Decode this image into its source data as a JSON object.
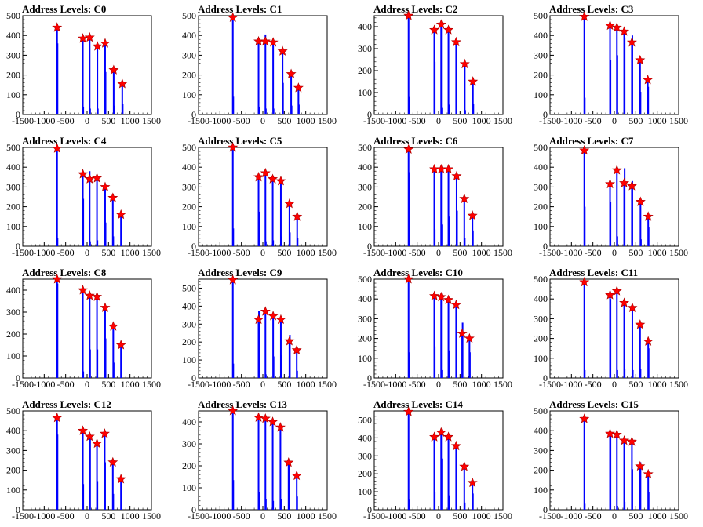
{
  "x_ticks": [
    "-1500",
    "-1000",
    "-500",
    "0",
    "500",
    "1000",
    "1500"
  ],
  "colors": {
    "bars": "#0000ff",
    "markers": "#ff0000",
    "frame": "#000000"
  },
  "chart_data": [
    {
      "type": "bar",
      "title": "Address Levels: C0",
      "xlim": [
        -1500,
        1500
      ],
      "ylim": [
        0,
        500
      ],
      "y_ticks": [
        "0",
        "100",
        "200",
        "300",
        "400",
        "500"
      ],
      "markers": {
        "x": [
          -700,
          -100,
          60,
          240,
          420,
          620,
          820
        ],
        "y": [
          440,
          385,
          390,
          345,
          360,
          225,
          155
        ]
      },
      "bars": {
        "x": [
          -700,
          -690,
          -100,
          -90,
          60,
          70,
          240,
          250,
          420,
          430,
          620,
          630,
          820,
          830
        ],
        "y": [
          430,
          360,
          380,
          40,
          390,
          30,
          340,
          30,
          355,
          215,
          220,
          45,
          150,
          55
        ]
      }
    },
    {
      "type": "bar",
      "title": "Address Levels: C1",
      "xlim": [
        -1500,
        1500
      ],
      "ylim": [
        0,
        500
      ],
      "y_ticks": [
        "0",
        "100",
        "200",
        "300",
        "400",
        "500"
      ],
      "markers": {
        "x": [
          -700,
          -100,
          60,
          240,
          460,
          660,
          830
        ],
        "y": [
          490,
          370,
          370,
          365,
          320,
          205,
          135
        ]
      },
      "bars": {
        "x": [
          -700,
          -690,
          -100,
          -90,
          60,
          70,
          240,
          250,
          460,
          470,
          660,
          670,
          830,
          840
        ],
        "y": [
          485,
          90,
          365,
          40,
          405,
          30,
          360,
          30,
          315,
          160,
          200,
          45,
          130,
          50
        ]
      }
    },
    {
      "type": "bar",
      "title": "Address Levels: C2",
      "xlim": [
        -1500,
        1500
      ],
      "ylim": [
        0,
        450
      ],
      "y_ticks": [
        "0",
        "100",
        "200",
        "300",
        "400"
      ],
      "markers": {
        "x": [
          -700,
          -100,
          60,
          230,
          410,
          610,
          800
        ],
        "y": [
          465,
          385,
          410,
          385,
          330,
          230,
          150
        ]
      },
      "bars": {
        "x": [
          -700,
          -690,
          -100,
          -90,
          60,
          70,
          230,
          240,
          410,
          420,
          610,
          620,
          800,
          810
        ],
        "y": [
          460,
          80,
          380,
          240,
          400,
          30,
          380,
          45,
          325,
          40,
          225,
          20,
          145,
          50
        ]
      }
    },
    {
      "type": "bar",
      "title": "Address Levels: C3",
      "xlim": [
        -1500,
        1500
      ],
      "ylim": [
        0,
        500
      ],
      "y_ticks": [
        "0",
        "100",
        "200",
        "300",
        "400",
        "500"
      ],
      "markers": {
        "x": [
          -700,
          -100,
          60,
          230,
          410,
          600,
          780
        ],
        "y": [
          495,
          450,
          440,
          420,
          365,
          275,
          175
        ]
      },
      "bars": {
        "x": [
          -700,
          -690,
          -100,
          -90,
          60,
          70,
          230,
          240,
          410,
          420,
          600,
          610,
          780,
          790
        ],
        "y": [
          490,
          85,
          445,
          275,
          435,
          300,
          415,
          390,
          360,
          400,
          270,
          115,
          170,
          140
        ]
      }
    },
    {
      "type": "bar",
      "title": "Address Levels: C4",
      "xlim": [
        -1500,
        1500
      ],
      "ylim": [
        0,
        500
      ],
      "y_ticks": [
        "0",
        "100",
        "200",
        "300",
        "400",
        "500"
      ],
      "markers": {
        "x": [
          -700,
          -100,
          60,
          230,
          420,
          600,
          790
        ],
        "y": [
          495,
          365,
          340,
          345,
          300,
          245,
          160
        ]
      },
      "bars": {
        "x": [
          -700,
          -690,
          -100,
          -90,
          60,
          70,
          230,
          240,
          420,
          430,
          600,
          610,
          790,
          800
        ],
        "y": [
          495,
          40,
          365,
          240,
          380,
          25,
          340,
          30,
          290,
          120,
          235,
          50,
          155,
          45
        ]
      }
    },
    {
      "type": "bar",
      "title": "Address Levels: C5",
      "xlim": [
        -1500,
        1500
      ],
      "ylim": [
        0,
        500
      ],
      "y_ticks": [
        "0",
        "100",
        "200",
        "300",
        "400",
        "500"
      ],
      "markers": {
        "x": [
          -700,
          -100,
          60,
          230,
          420,
          620,
          800
        ],
        "y": [
          515,
          350,
          370,
          340,
          330,
          215,
          150
        ]
      },
      "bars": {
        "x": [
          -700,
          -690,
          -100,
          -90,
          60,
          70,
          230,
          240,
          420,
          430,
          620,
          630,
          800,
          810
        ],
        "y": [
          510,
          90,
          345,
          175,
          365,
          25,
          335,
          30,
          325,
          50,
          210,
          70,
          145,
          40
        ]
      }
    },
    {
      "type": "bar",
      "title": "Address Levels: C6",
      "xlim": [
        -1500,
        1500
      ],
      "ylim": [
        0,
        500
      ],
      "y_ticks": [
        "0",
        "100",
        "200",
        "300",
        "400",
        "500"
      ],
      "markers": {
        "x": [
          -700,
          -100,
          60,
          230,
          420,
          600,
          790
        ],
        "y": [
          490,
          390,
          390,
          390,
          355,
          240,
          155
        ]
      },
      "bars": {
        "x": [
          -700,
          -690,
          -100,
          -90,
          60,
          70,
          230,
          240,
          420,
          430,
          600,
          610,
          790,
          800
        ],
        "y": [
          490,
          375,
          385,
          85,
          385,
          110,
          385,
          150,
          350,
          180,
          235,
          40,
          150,
          80
        ]
      }
    },
    {
      "type": "bar",
      "title": "Address Levels: C7",
      "xlim": [
        -1500,
        1500
      ],
      "ylim": [
        0,
        500
      ],
      "y_ticks": [
        "0",
        "100",
        "200",
        "300",
        "400",
        "500"
      ],
      "markers": {
        "x": [
          -700,
          -100,
          60,
          230,
          410,
          610,
          790
        ],
        "y": [
          485,
          315,
          385,
          320,
          305,
          225,
          150
        ]
      },
      "bars": {
        "x": [
          -700,
          -690,
          -100,
          -90,
          60,
          70,
          230,
          240,
          410,
          420,
          610,
          620,
          790,
          800
        ],
        "y": [
          480,
          200,
          310,
          225,
          380,
          50,
          320,
          395,
          300,
          330,
          220,
          35,
          145,
          95
        ]
      }
    },
    {
      "type": "bar",
      "title": "Address Levels: C8",
      "xlim": [
        -1500,
        1500
      ],
      "ylim": [
        0,
        450
      ],
      "y_ticks": [
        "0",
        "100",
        "200",
        "300",
        "400"
      ],
      "markers": {
        "x": [
          -700,
          -100,
          60,
          230,
          420,
          610,
          790
        ],
        "y": [
          460,
          400,
          375,
          370,
          320,
          235,
          150
        ]
      },
      "bars": {
        "x": [
          -700,
          -690,
          -100,
          -90,
          60,
          70,
          230,
          240,
          420,
          430,
          610,
          620,
          790,
          800
        ],
        "y": [
          455,
          430,
          395,
          30,
          375,
          130,
          365,
          130,
          315,
          180,
          230,
          70,
          145,
          60
        ]
      }
    },
    {
      "type": "bar",
      "title": "Address Levels: C9",
      "xlim": [
        -1500,
        1500
      ],
      "ylim": [
        0,
        550
      ],
      "y_ticks": [
        "0",
        "100",
        "200",
        "300",
        "400",
        "500"
      ],
      "markers": {
        "x": [
          -700,
          -100,
          60,
          240,
          420,
          620,
          790
        ],
        "y": [
          545,
          325,
          370,
          345,
          325,
          205,
          155
        ]
      },
      "bars": {
        "x": [
          -700,
          -690,
          -100,
          -90,
          60,
          70,
          240,
          250,
          420,
          430,
          620,
          630,
          790,
          800
        ],
        "y": [
          540,
          80,
          330,
          375,
          365,
          20,
          345,
          120,
          320,
          125,
          200,
          240,
          150,
          40
        ]
      }
    },
    {
      "type": "bar",
      "title": "Address Levels: C10",
      "xlim": [
        -1500,
        1500
      ],
      "ylim": [
        0,
        500
      ],
      "y_ticks": [
        "0",
        "100",
        "200",
        "300",
        "400",
        "500"
      ],
      "markers": {
        "x": [
          -700,
          -100,
          60,
          230,
          410,
          550,
          720
        ],
        "y": [
          510,
          415,
          410,
          395,
          370,
          225,
          200
        ]
      },
      "bars": {
        "x": [
          -700,
          -690,
          -100,
          -90,
          60,
          70,
          230,
          240,
          410,
          420,
          550,
          560,
          720,
          730
        ],
        "y": [
          505,
          130,
          410,
          160,
          405,
          40,
          390,
          140,
          365,
          40,
          225,
          280,
          195,
          130
        ]
      }
    },
    {
      "type": "bar",
      "title": "Address Levels: C11",
      "xlim": [
        -1500,
        1500
      ],
      "ylim": [
        0,
        500
      ],
      "y_ticks": [
        "0",
        "100",
        "200",
        "300",
        "400",
        "500"
      ],
      "markers": {
        "x": [
          -700,
          -100,
          60,
          230,
          420,
          600,
          790
        ],
        "y": [
          485,
          420,
          440,
          380,
          355,
          270,
          185
        ]
      },
      "bars": {
        "x": [
          -700,
          -690,
          -100,
          -90,
          60,
          70,
          230,
          240,
          420,
          430,
          600,
          610,
          790,
          800
        ],
        "y": [
          480,
          40,
          415,
          400,
          440,
          40,
          375,
          45,
          350,
          40,
          265,
          45,
          180,
          150
        ]
      }
    },
    {
      "type": "bar",
      "title": "Address Levels: C12",
      "xlim": [
        -1500,
        1500
      ],
      "ylim": [
        0,
        500
      ],
      "y_ticks": [
        "0",
        "100",
        "200",
        "300",
        "400",
        "500"
      ],
      "markers": {
        "x": [
          -700,
          -100,
          60,
          230,
          410,
          600,
          790
        ],
        "y": [
          465,
          400,
          370,
          335,
          385,
          240,
          155
        ]
      },
      "bars": {
        "x": [
          -700,
          -690,
          -100,
          -90,
          60,
          70,
          230,
          240,
          410,
          420,
          600,
          610,
          790,
          800
        ],
        "y": [
          460,
          380,
          395,
          130,
          365,
          380,
          330,
          145,
          380,
          240,
          235,
          80,
          150,
          70
        ]
      }
    },
    {
      "type": "bar",
      "title": "Address Levels: C13",
      "xlim": [
        -1500,
        1500
      ],
      "ylim": [
        0,
        450
      ],
      "y_ticks": [
        "0",
        "100",
        "200",
        "300",
        "400"
      ],
      "markers": {
        "x": [
          -700,
          -100,
          60,
          230,
          410,
          600,
          790
        ],
        "y": [
          470,
          420,
          415,
          400,
          375,
          215,
          155
        ]
      },
      "bars": {
        "x": [
          -700,
          -690,
          -100,
          -90,
          60,
          70,
          230,
          240,
          410,
          420,
          600,
          610,
          790,
          800
        ],
        "y": [
          465,
          135,
          415,
          80,
          410,
          50,
          395,
          40,
          370,
          50,
          210,
          220,
          150,
          60
        ]
      }
    },
    {
      "type": "bar",
      "title": "Address Levels: C14",
      "xlim": [
        -1500,
        1500
      ],
      "ylim": [
        0,
        550
      ],
      "y_ticks": [
        "0",
        "100",
        "200",
        "300",
        "400",
        "500"
      ],
      "markers": {
        "x": [
          -700,
          -100,
          60,
          230,
          410,
          600,
          790
        ],
        "y": [
          545,
          405,
          430,
          405,
          355,
          240,
          150
        ]
      },
      "bars": {
        "x": [
          -700,
          -690,
          -100,
          -90,
          60,
          70,
          230,
          240,
          410,
          420,
          600,
          610,
          790,
          800
        ],
        "y": [
          540,
          60,
          400,
          100,
          425,
          285,
          400,
          80,
          350,
          90,
          235,
          40,
          145,
          90
        ]
      }
    },
    {
      "type": "bar",
      "title": "Address Levels: C15",
      "xlim": [
        -1500,
        1500
      ],
      "ylim": [
        0,
        500
      ],
      "y_ticks": [
        "0",
        "100",
        "200",
        "300",
        "400",
        "500"
      ],
      "markers": {
        "x": [
          -700,
          -100,
          60,
          230,
          410,
          600,
          790
        ],
        "y": [
          460,
          385,
          380,
          350,
          345,
          220,
          180
        ]
      },
      "bars": {
        "x": [
          -700,
          -690,
          -100,
          -90,
          60,
          70,
          230,
          240,
          410,
          420,
          600,
          610,
          790,
          800
        ],
        "y": [
          455,
          30,
          385,
          380,
          375,
          20,
          345,
          40,
          340,
          205,
          215,
          240,
          175,
          90
        ]
      }
    }
  ]
}
